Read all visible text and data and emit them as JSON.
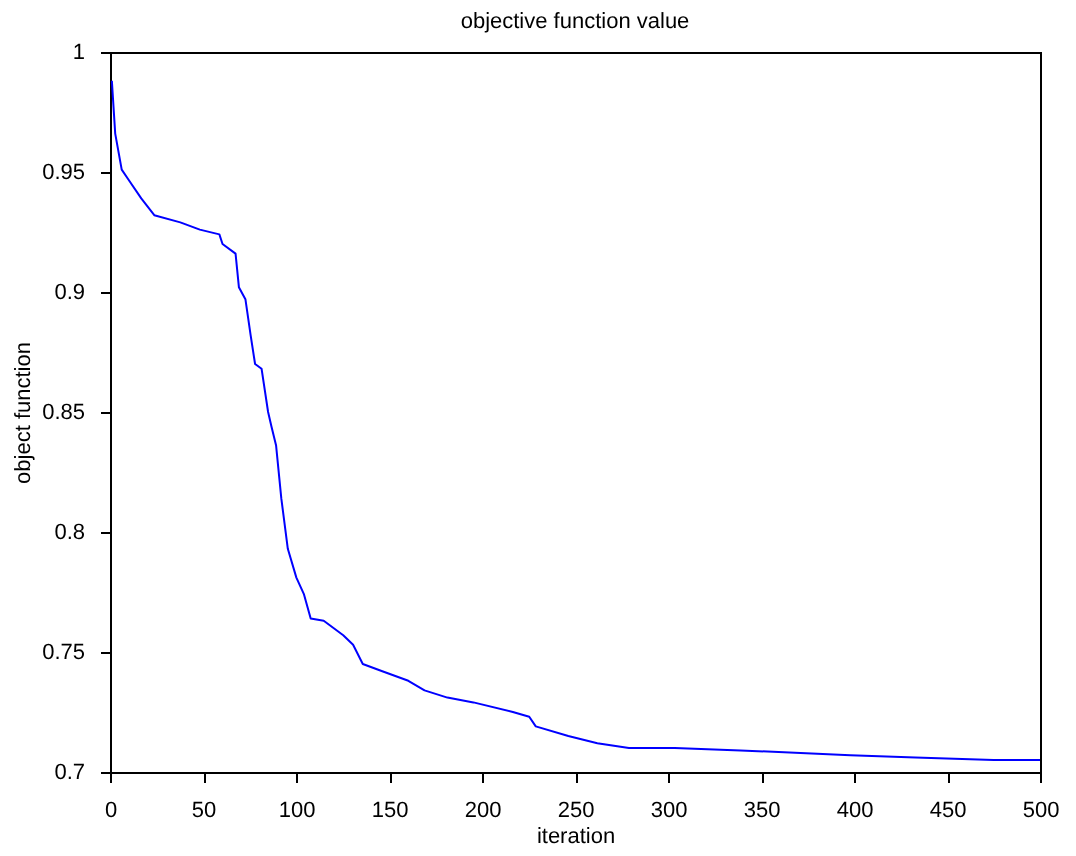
{
  "chart_data": {
    "type": "line",
    "title": "objective function value",
    "xlabel": "iteration",
    "ylabel": "object function",
    "xlim": [
      0,
      500
    ],
    "xticks": [
      0,
      50,
      100,
      150,
      200,
      250,
      300,
      350,
      400,
      450,
      500
    ],
    "ylim": [
      0.7,
      1
    ],
    "yticks": [
      0.7,
      0.75,
      0.8,
      0.85,
      0.9,
      0.95,
      1
    ],
    "grid": false,
    "marker": "none",
    "line_style": "solid",
    "series": [
      {
        "color": "#0000ff",
        "x": [
          1,
          2.8,
          6.3,
          9.8,
          16.8,
          23.8,
          37.8,
          48.3,
          58.8,
          60.5,
          67.5,
          69.3,
          72.8,
          75.6,
          78,
          81.5,
          85,
          86.8,
          89.3,
          92.1,
          95.6,
          100.2,
          104.3,
          107.9,
          114.9,
          125.4,
          130.7,
          135.9,
          146.4,
          160.4,
          169.1,
          181.4,
          195.4,
          216.6,
          225.4,
          228.9,
          246.4,
          262,
          279,
          303.6,
          339,
          398,
          433,
          475,
          500
        ],
        "values": [
          0.988,
          0.966,
          0.951,
          0.947,
          0.939,
          0.932,
          0.929,
          0.926,
          0.924,
          0.92,
          0.916,
          0.902,
          0.897,
          0.882,
          0.87,
          0.868,
          0.85,
          0.844,
          0.836,
          0.814,
          0.793,
          0.781,
          0.774,
          0.764,
          0.763,
          0.757,
          0.753,
          0.745,
          0.742,
          0.738,
          0.734,
          0.731,
          0.729,
          0.725,
          0.723,
          0.719,
          0.715,
          0.712,
          0.71,
          0.71,
          0.709,
          0.707,
          0.706,
          0.705,
          0.705
        ]
      }
    ]
  }
}
